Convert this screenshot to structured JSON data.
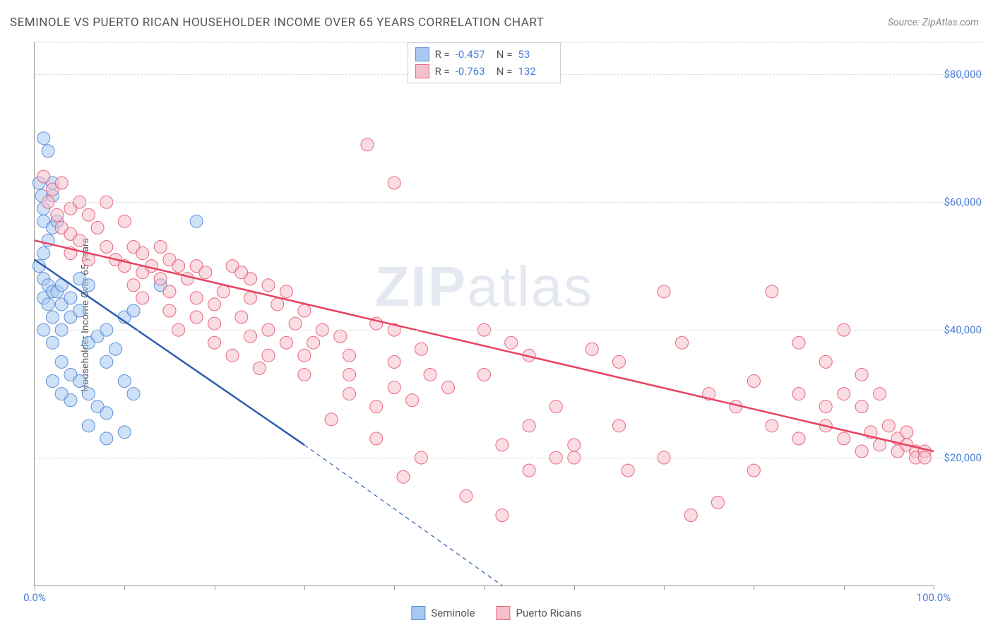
{
  "title": "SEMINOLE VS PUERTO RICAN HOUSEHOLDER INCOME OVER 65 YEARS CORRELATION CHART",
  "source": "Source: ZipAtlas.com",
  "ylabel": "Householder Income Over 65 years",
  "watermark_a": "ZIP",
  "watermark_b": "atlas",
  "chart": {
    "type": "scatter",
    "xlim": [
      0,
      100
    ],
    "ylim": [
      0,
      85000
    ],
    "x_tick_positions": [
      0,
      10,
      20,
      30,
      40,
      50,
      60,
      70,
      80,
      90,
      100
    ],
    "x_tick_labels": {
      "0": "0.0%",
      "100": "100.0%"
    },
    "y_gridlines": [
      20000,
      40000,
      60000,
      80000
    ],
    "y_tick_labels": {
      "20000": "$20,000",
      "40000": "$40,000",
      "60000": "$60,000",
      "80000": "$80,000"
    },
    "background_color": "#ffffff",
    "grid_color": "#dcdcdc",
    "axis_color": "#999999",
    "marker_radius": 9,
    "marker_opacity": 0.55,
    "series": [
      {
        "name": "Seminole",
        "color_fill": "#a8c8f0",
        "color_stroke": "#5b8fd8",
        "r_value": "-0.457",
        "n_value": "53",
        "trend": {
          "x1": 0,
          "y1": 51000,
          "x2_solid": 30,
          "y2_solid": 22000,
          "x2_dash": 52,
          "y2_dash": 0,
          "stroke": "#2d5fb0",
          "width": 2.5
        },
        "points": [
          [
            1,
            70000
          ],
          [
            1.5,
            68000
          ],
          [
            0.5,
            63000
          ],
          [
            0.8,
            61000
          ],
          [
            1,
            59000
          ],
          [
            2,
            63000
          ],
          [
            2,
            61000
          ],
          [
            1,
            57000
          ],
          [
            2,
            56000
          ],
          [
            1.5,
            54000
          ],
          [
            1,
            52000
          ],
          [
            2.5,
            57000
          ],
          [
            0.5,
            50000
          ],
          [
            1,
            48000
          ],
          [
            1.5,
            47000
          ],
          [
            1,
            45000
          ],
          [
            2,
            46000
          ],
          [
            1.5,
            44000
          ],
          [
            2.5,
            46000
          ],
          [
            3,
            47000
          ],
          [
            2,
            42000
          ],
          [
            3,
            44000
          ],
          [
            4,
            45000
          ],
          [
            5,
            48000
          ],
          [
            6,
            47000
          ],
          [
            4,
            42000
          ],
          [
            5,
            43000
          ],
          [
            3,
            40000
          ],
          [
            1,
            40000
          ],
          [
            2,
            38000
          ],
          [
            6,
            38000
          ],
          [
            7,
            39000
          ],
          [
            8,
            40000
          ],
          [
            10,
            42000
          ],
          [
            11,
            43000
          ],
          [
            14,
            47000
          ],
          [
            18,
            57000
          ],
          [
            8,
            35000
          ],
          [
            9,
            37000
          ],
          [
            3,
            35000
          ],
          [
            4,
            33000
          ],
          [
            5,
            32000
          ],
          [
            6,
            30000
          ],
          [
            4,
            29000
          ],
          [
            7,
            28000
          ],
          [
            8,
            27000
          ],
          [
            2,
            32000
          ],
          [
            3,
            30000
          ],
          [
            10,
            32000
          ],
          [
            11,
            30000
          ],
          [
            6,
            25000
          ],
          [
            8,
            23000
          ],
          [
            10,
            24000
          ]
        ]
      },
      {
        "name": "Puerto Ricans",
        "color_fill": "#f5c0cc",
        "color_stroke": "#e8657f",
        "r_value": "-0.763",
        "n_value": "132",
        "trend": {
          "x1": 0,
          "y1": 54000,
          "x2_solid": 100,
          "y2_solid": 21000,
          "stroke": "#e8415f",
          "width": 2.5
        },
        "points": [
          [
            1,
            64000
          ],
          [
            2,
            62000
          ],
          [
            3,
            63000
          ],
          [
            1.5,
            60000
          ],
          [
            2.5,
            58000
          ],
          [
            4,
            59000
          ],
          [
            5,
            60000
          ],
          [
            6,
            58000
          ],
          [
            8,
            60000
          ],
          [
            3,
            56000
          ],
          [
            4,
            55000
          ],
          [
            5,
            54000
          ],
          [
            7,
            56000
          ],
          [
            10,
            57000
          ],
          [
            4,
            52000
          ],
          [
            6,
            51000
          ],
          [
            8,
            53000
          ],
          [
            9,
            51000
          ],
          [
            11,
            53000
          ],
          [
            12,
            52000
          ],
          [
            14,
            53000
          ],
          [
            10,
            50000
          ],
          [
            12,
            49000
          ],
          [
            13,
            50000
          ],
          [
            15,
            51000
          ],
          [
            16,
            50000
          ],
          [
            18,
            50000
          ],
          [
            11,
            47000
          ],
          [
            14,
            48000
          ],
          [
            17,
            48000
          ],
          [
            19,
            49000
          ],
          [
            22,
            50000
          ],
          [
            24,
            48000
          ],
          [
            12,
            45000
          ],
          [
            15,
            46000
          ],
          [
            18,
            45000
          ],
          [
            21,
            46000
          ],
          [
            23,
            49000
          ],
          [
            26,
            47000
          ],
          [
            28,
            46000
          ],
          [
            15,
            43000
          ],
          [
            18,
            42000
          ],
          [
            20,
            44000
          ],
          [
            24,
            45000
          ],
          [
            27,
            44000
          ],
          [
            30,
            43000
          ],
          [
            16,
            40000
          ],
          [
            20,
            41000
          ],
          [
            23,
            42000
          ],
          [
            26,
            40000
          ],
          [
            29,
            41000
          ],
          [
            32,
            40000
          ],
          [
            20,
            38000
          ],
          [
            24,
            39000
          ],
          [
            28,
            38000
          ],
          [
            31,
            38000
          ],
          [
            34,
            39000
          ],
          [
            22,
            36000
          ],
          [
            26,
            36000
          ],
          [
            30,
            36000
          ],
          [
            35,
            36000
          ],
          [
            38,
            41000
          ],
          [
            40,
            40000
          ],
          [
            25,
            34000
          ],
          [
            30,
            33000
          ],
          [
            35,
            33000
          ],
          [
            40,
            35000
          ],
          [
            43,
            37000
          ],
          [
            35,
            30000
          ],
          [
            40,
            31000
          ],
          [
            44,
            33000
          ],
          [
            38,
            28000
          ],
          [
            42,
            29000
          ],
          [
            46,
            31000
          ],
          [
            50,
            33000
          ],
          [
            37,
            69000
          ],
          [
            40,
            63000
          ],
          [
            50,
            40000
          ],
          [
            53,
            38000
          ],
          [
            55,
            36000
          ],
          [
            33,
            26000
          ],
          [
            38,
            23000
          ],
          [
            43,
            20000
          ],
          [
            52,
            22000
          ],
          [
            55,
            25000
          ],
          [
            58,
            28000
          ],
          [
            41,
            17000
          ],
          [
            48,
            14000
          ],
          [
            52,
            11000
          ],
          [
            55,
            18000
          ],
          [
            58,
            20000
          ],
          [
            60,
            22000
          ],
          [
            62,
            37000
          ],
          [
            65,
            35000
          ],
          [
            70,
            46000
          ],
          [
            60,
            20000
          ],
          [
            65,
            25000
          ],
          [
            66,
            18000
          ],
          [
            70,
            20000
          ],
          [
            72,
            38000
          ],
          [
            75,
            30000
          ],
          [
            78,
            28000
          ],
          [
            80,
            32000
          ],
          [
            82,
            25000
          ],
          [
            85,
            30000
          ],
          [
            73,
            11000
          ],
          [
            76,
            13000
          ],
          [
            80,
            18000
          ],
          [
            82,
            46000
          ],
          [
            85,
            38000
          ],
          [
            88,
            35000
          ],
          [
            90,
            40000
          ],
          [
            92,
            33000
          ],
          [
            88,
            28000
          ],
          [
            90,
            30000
          ],
          [
            92,
            28000
          ],
          [
            94,
            30000
          ],
          [
            85,
            23000
          ],
          [
            88,
            25000
          ],
          [
            90,
            23000
          ],
          [
            93,
            24000
          ],
          [
            95,
            25000
          ],
          [
            96,
            23000
          ],
          [
            92,
            21000
          ],
          [
            94,
            22000
          ],
          [
            96,
            21000
          ],
          [
            97,
            22000
          ],
          [
            98,
            21000
          ],
          [
            98,
            20000
          ],
          [
            97,
            24000
          ],
          [
            99,
            21000
          ],
          [
            99,
            20000
          ]
        ]
      }
    ]
  },
  "legend": {
    "items": [
      {
        "label": "Seminole",
        "fill": "#a8c8f0",
        "stroke": "#5b8fd8"
      },
      {
        "label": "Puerto Ricans",
        "fill": "#f5c0cc",
        "stroke": "#e8657f"
      }
    ]
  }
}
